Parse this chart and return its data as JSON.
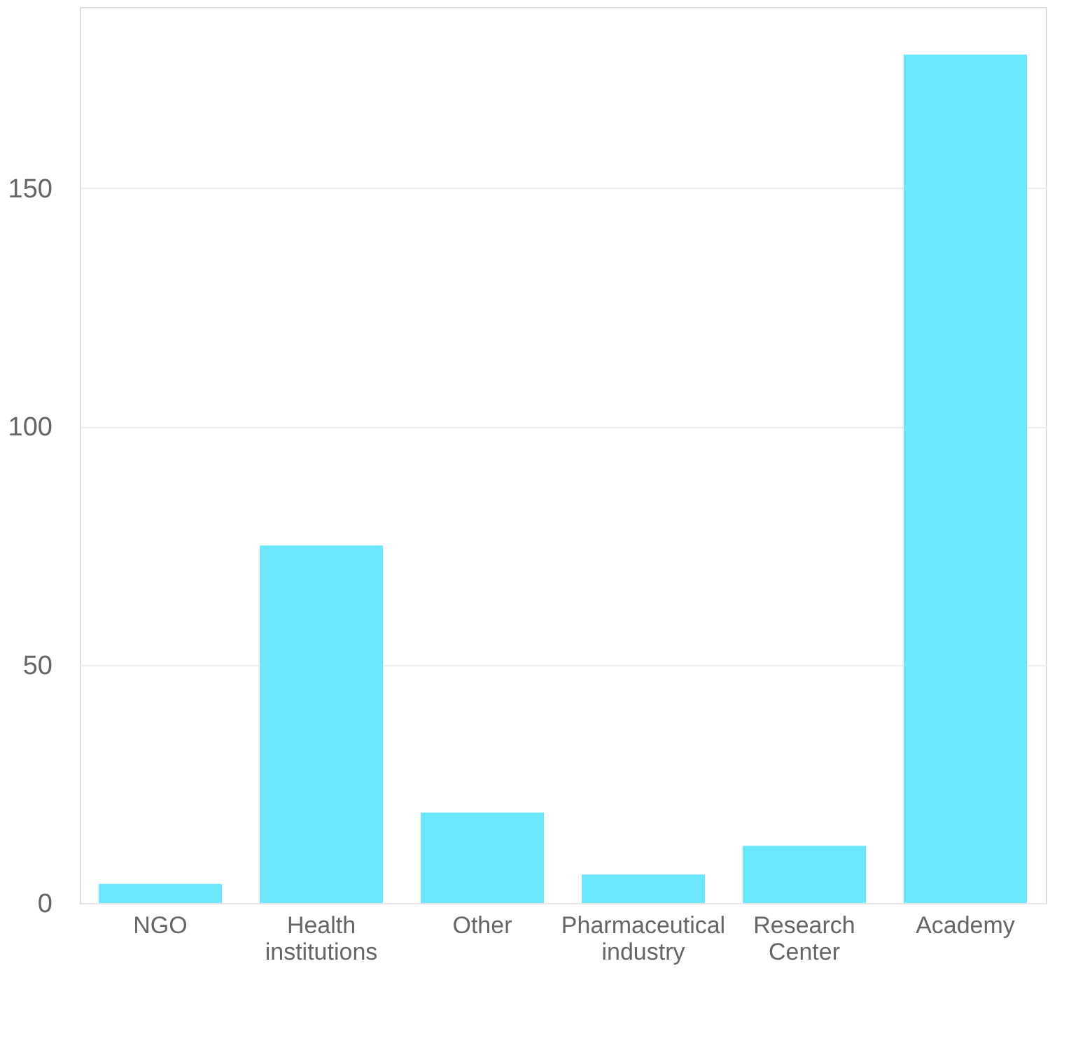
{
  "chart_data": {
    "type": "bar",
    "categories": [
      "NGO",
      "Health institutions",
      "Other",
      "Pharmaceutical industry",
      "Research Center",
      "Academy"
    ],
    "values": [
      4,
      75,
      19,
      6,
      12,
      178
    ],
    "color": "#6ce8fc",
    "ylim": [
      0,
      188
    ],
    "yticks": [
      0,
      50,
      100,
      150
    ],
    "grid": "y"
  }
}
